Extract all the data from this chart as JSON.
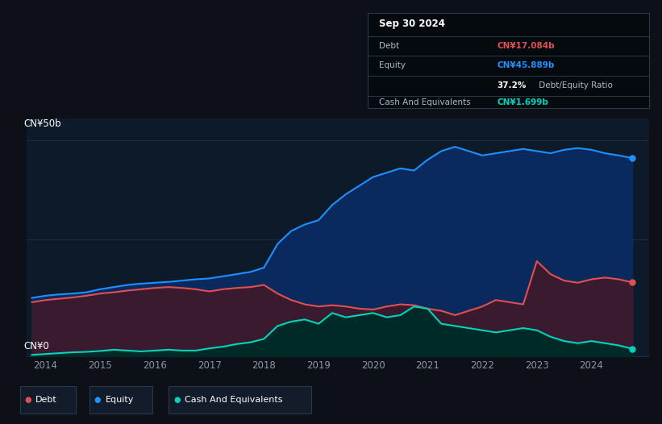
{
  "bg_color": "#0d1117",
  "plot_bg_color": "#0d1a2a",
  "title": "Sep 30 2024",
  "ylabel_top": "CN¥50b",
  "ylabel_bottom": "CN¥0",
  "ylim": [
    0,
    55
  ],
  "equity_color": "#1e90ff",
  "equity_fill": "#0a2a5e",
  "debt_color": "#e05050",
  "debt_fill": "#3a1a2e",
  "cash_color": "#00d4bb",
  "cash_fill": "#002a28",
  "grid_color": "#1e2d3d",
  "tick_color": "#8899aa",
  "legend_bg": "#131c2b",
  "legend_border": "#2a3a4a",
  "info_title": "Sep 30 2024",
  "info_rows": [
    {
      "label": "Debt",
      "value": "CN¥17.084b",
      "value_color": "#e05050",
      "bold_value": true
    },
    {
      "label": "Equity",
      "value": "CN¥45.889b",
      "value_color": "#1e90ff",
      "bold_value": true
    },
    {
      "label": "",
      "value_prefix": "37.2%",
      "value_suffix": " Debt/Equity Ratio",
      "value_color": "#ffffff"
    },
    {
      "label": "Cash And Equivalents",
      "value": "CN¥1.699b",
      "value_color": "#00d4bb",
      "bold_value": true
    }
  ],
  "equity_data_x": [
    2013.75,
    2014.0,
    2014.25,
    2014.5,
    2014.75,
    2015.0,
    2015.25,
    2015.5,
    2015.75,
    2016.0,
    2016.25,
    2016.5,
    2016.75,
    2017.0,
    2017.25,
    2017.5,
    2017.75,
    2018.0,
    2018.25,
    2018.5,
    2018.75,
    2019.0,
    2019.25,
    2019.5,
    2019.75,
    2020.0,
    2020.25,
    2020.5,
    2020.75,
    2021.0,
    2021.25,
    2021.5,
    2021.75,
    2022.0,
    2022.25,
    2022.5,
    2022.75,
    2023.0,
    2023.25,
    2023.5,
    2023.75,
    2024.0,
    2024.25,
    2024.5,
    2024.75
  ],
  "equity_data_y": [
    13.5,
    14.0,
    14.3,
    14.5,
    14.8,
    15.5,
    16.0,
    16.5,
    16.8,
    17.0,
    17.2,
    17.5,
    17.8,
    18.0,
    18.5,
    19.0,
    19.5,
    20.5,
    26.0,
    29.0,
    30.5,
    31.5,
    35.0,
    37.5,
    39.5,
    41.5,
    42.5,
    43.5,
    43.0,
    45.5,
    47.5,
    48.5,
    47.5,
    46.5,
    47.0,
    47.5,
    48.0,
    47.5,
    47.0,
    47.8,
    48.2,
    47.8,
    47.0,
    46.5,
    45.889
  ],
  "debt_data_x": [
    2013.75,
    2014.0,
    2014.25,
    2014.5,
    2014.75,
    2015.0,
    2015.25,
    2015.5,
    2015.75,
    2016.0,
    2016.25,
    2016.5,
    2016.75,
    2017.0,
    2017.25,
    2017.5,
    2017.75,
    2018.0,
    2018.25,
    2018.5,
    2018.75,
    2019.0,
    2019.25,
    2019.5,
    2019.75,
    2020.0,
    2020.25,
    2020.5,
    2020.75,
    2021.0,
    2021.25,
    2021.5,
    2021.75,
    2022.0,
    2022.25,
    2022.5,
    2022.75,
    2023.0,
    2023.25,
    2023.5,
    2023.75,
    2024.0,
    2024.25,
    2024.5,
    2024.75
  ],
  "debt_data_y": [
    12.5,
    13.0,
    13.3,
    13.6,
    14.0,
    14.5,
    14.8,
    15.2,
    15.5,
    15.8,
    16.0,
    15.8,
    15.5,
    15.0,
    15.5,
    15.8,
    16.0,
    16.5,
    14.5,
    13.0,
    12.0,
    11.5,
    11.8,
    11.5,
    11.0,
    10.8,
    11.5,
    12.0,
    11.8,
    11.0,
    10.5,
    9.5,
    10.5,
    11.5,
    13.0,
    12.5,
    12.0,
    22.0,
    19.0,
    17.5,
    17.0,
    17.8,
    18.2,
    17.8,
    17.084
  ],
  "cash_data_x": [
    2013.75,
    2014.0,
    2014.25,
    2014.5,
    2014.75,
    2015.0,
    2015.25,
    2015.5,
    2015.75,
    2016.0,
    2016.25,
    2016.5,
    2016.75,
    2017.0,
    2017.25,
    2017.5,
    2017.75,
    2018.0,
    2018.25,
    2018.5,
    2018.75,
    2019.0,
    2019.25,
    2019.5,
    2019.75,
    2020.0,
    2020.25,
    2020.5,
    2020.75,
    2021.0,
    2021.25,
    2021.5,
    2021.75,
    2022.0,
    2022.25,
    2022.5,
    2022.75,
    2023.0,
    2023.25,
    2023.5,
    2023.75,
    2024.0,
    2024.25,
    2024.5,
    2024.75
  ],
  "cash_data_y": [
    0.3,
    0.5,
    0.7,
    0.9,
    1.0,
    1.2,
    1.5,
    1.3,
    1.1,
    1.3,
    1.5,
    1.3,
    1.3,
    1.8,
    2.2,
    2.8,
    3.2,
    4.0,
    7.0,
    8.0,
    8.5,
    7.5,
    10.0,
    9.0,
    9.5,
    10.0,
    9.0,
    9.5,
    11.5,
    11.0,
    7.5,
    7.0,
    6.5,
    6.0,
    5.5,
    6.0,
    6.5,
    6.0,
    4.5,
    3.5,
    3.0,
    3.5,
    3.0,
    2.5,
    1.699
  ]
}
